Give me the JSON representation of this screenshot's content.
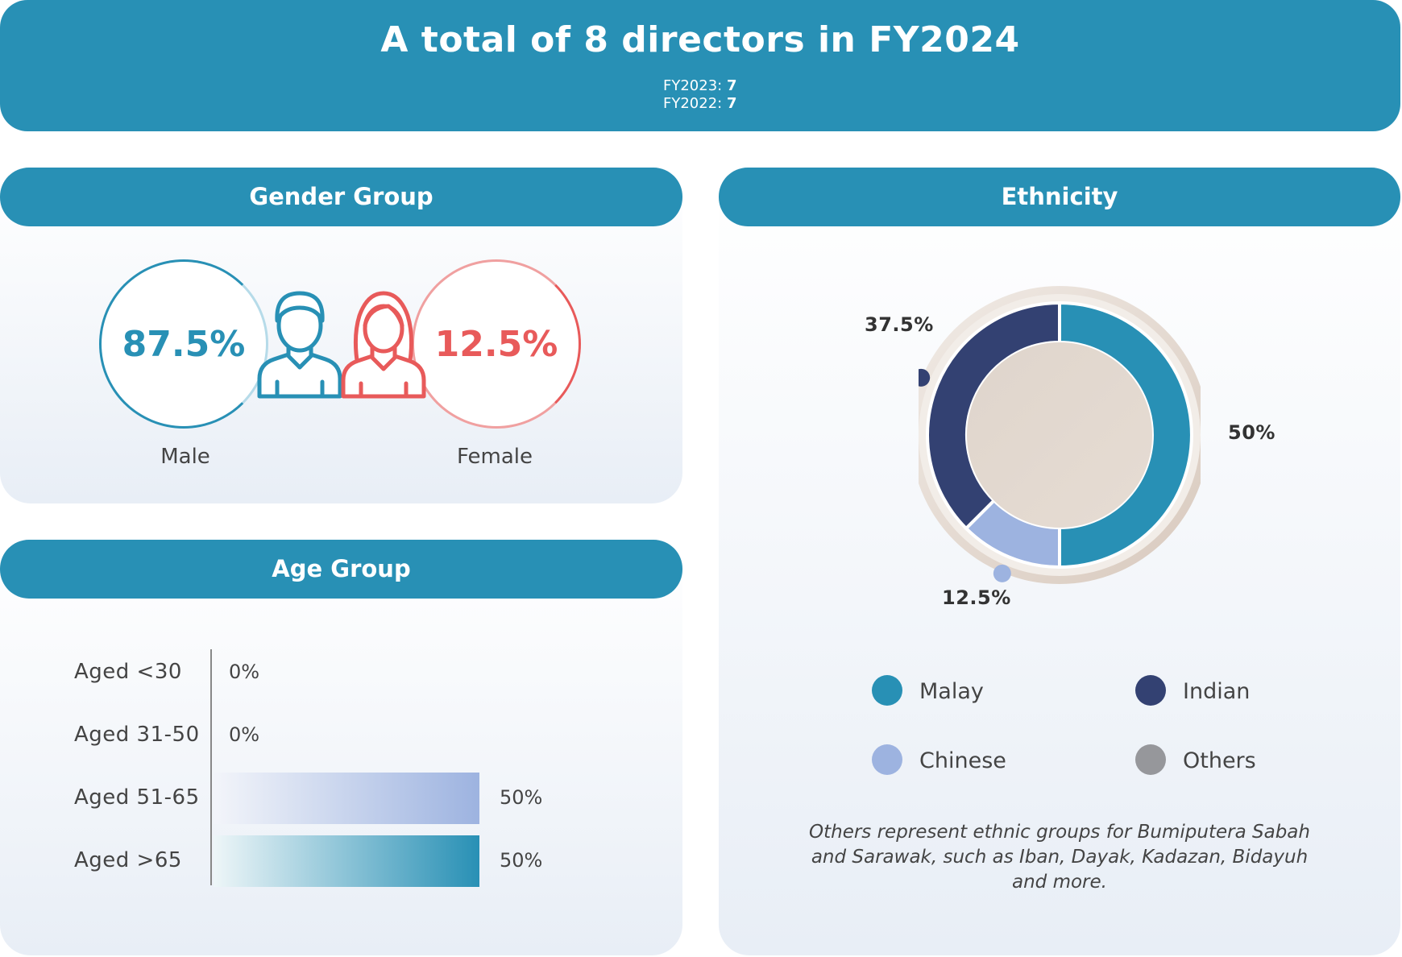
{
  "header": {
    "title": "A total of 8 directors in FY2024",
    "fy2023_label": "FY2023: ",
    "fy2023_value": "7",
    "fy2022_label": "FY2022: ",
    "fy2022_value": "7"
  },
  "gender": {
    "heading": "Gender Group",
    "male": {
      "value": "87.5%",
      "label": "Male",
      "color": "#2890b5"
    },
    "female": {
      "value": "12.5%",
      "label": "Female",
      "color": "#e85a5a"
    }
  },
  "age": {
    "heading": "Age Group",
    "rows": [
      {
        "label": "Aged <30",
        "value_text": "0%"
      },
      {
        "label": "Aged 31-50",
        "value_text": "0%"
      },
      {
        "label": "Aged 51-65",
        "value_text": "50%"
      },
      {
        "label": "Aged >65",
        "value_text": "50%"
      }
    ]
  },
  "ethnicity": {
    "heading": "Ethnicity",
    "legend": [
      {
        "label": "Malay",
        "color": "#2890b5"
      },
      {
        "label": "Indian",
        "color": "#334172"
      },
      {
        "label": "Chinese",
        "color": "#9db3e0"
      },
      {
        "label": "Others",
        "color": "#96979b"
      }
    ],
    "labels": {
      "malay": "50%",
      "indian": "37.5%",
      "chinese": "12.5%"
    },
    "note": "Others represent ethnic groups for Bumiputera Sabah and Sarawak, such as Iban, Dayak, Kadazan, Bidayuh and more."
  },
  "chart_data": [
    {
      "type": "bar",
      "categories": [
        "Aged <30",
        "Aged 31-50",
        "Aged 51-65",
        "Aged >65"
      ],
      "values": [
        0,
        0,
        50,
        50
      ],
      "title": "Age Group",
      "ylim": [
        0,
        100
      ]
    },
    {
      "type": "pie",
      "categories": [
        "Malay",
        "Chinese",
        "Indian",
        "Others"
      ],
      "values": [
        50,
        12.5,
        37.5,
        0
      ],
      "title": "Ethnicity"
    },
    {
      "type": "pie",
      "categories": [
        "Male",
        "Female"
      ],
      "values": [
        87.5,
        12.5
      ],
      "title": "Gender Group"
    }
  ]
}
